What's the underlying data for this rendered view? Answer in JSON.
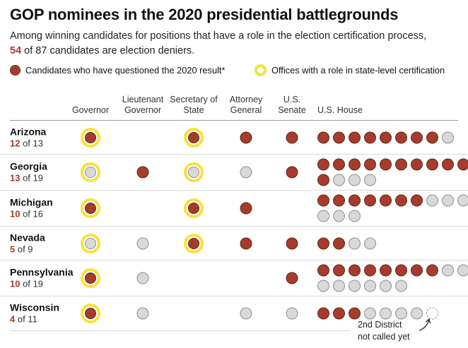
{
  "chart_data": {
    "type": "dot-matrix",
    "title": "GOP nominees in the 2020 presidential battlegrounds",
    "subtitle_line1": "Among winning candidates for positions that have a role in the election certification process,",
    "denier_count": "54",
    "subtitle_line2_rest": " of 87 candidates are election deniers.",
    "legend": {
      "denier_label": "Candidates who have questioned the 2020 result*",
      "certification_label": "Offices with a role in state-level certification"
    },
    "columns": [
      {
        "label": "Governor"
      },
      {
        "label": "Lieutenant Governor"
      },
      {
        "label": "Secretary of State"
      },
      {
        "label": "Attorney General"
      },
      {
        "label": "U.S. Senate"
      },
      {
        "label": "U.S. House"
      }
    ],
    "of_word": "of",
    "states": [
      {
        "name": "Arizona",
        "deniers": 12,
        "total": 13,
        "offices": {
          "governor": "red-ring",
          "lieutenant_governor": "none",
          "secretary_of_state": "red-ring",
          "attorney_general": "red",
          "us_senate": "red"
        },
        "house_rows": [
          [
            "red",
            "red",
            "red",
            "red",
            "red",
            "red",
            "red",
            "red",
            "gray"
          ]
        ]
      },
      {
        "name": "Georgia",
        "deniers": 13,
        "total": 19,
        "offices": {
          "governor": "gray-ring",
          "lieutenant_governor": "red",
          "secretary_of_state": "gray-ring",
          "attorney_general": "gray",
          "us_senate": "red"
        },
        "house_rows": [
          [
            "red",
            "red",
            "red",
            "red",
            "red",
            "red",
            "red",
            "red",
            "red",
            "red"
          ],
          [
            "red",
            "gray",
            "gray",
            "gray"
          ]
        ]
      },
      {
        "name": "Michigan",
        "deniers": 10,
        "total": 16,
        "offices": {
          "governor": "red-ring",
          "lieutenant_governor": "none",
          "secretary_of_state": "red-ring",
          "attorney_general": "red",
          "us_senate": "none"
        },
        "house_rows": [
          [
            "red",
            "red",
            "red",
            "red",
            "red",
            "red",
            "red",
            "gray",
            "gray",
            "gray"
          ],
          [
            "gray",
            "gray",
            "gray"
          ]
        ]
      },
      {
        "name": "Nevada",
        "deniers": 5,
        "total": 9,
        "offices": {
          "governor": "gray-ring",
          "lieutenant_governor": "gray",
          "secretary_of_state": "red-ring",
          "attorney_general": "red",
          "us_senate": "red"
        },
        "house_rows": [
          [
            "red",
            "red",
            "gray",
            "gray"
          ]
        ]
      },
      {
        "name": "Pennsylvania",
        "deniers": 10,
        "total": 19,
        "offices": {
          "governor": "red-ring",
          "lieutenant_governor": "gray",
          "secretary_of_state": "none",
          "attorney_general": "none",
          "us_senate": "red"
        },
        "house_rows": [
          [
            "red",
            "red",
            "red",
            "red",
            "red",
            "red",
            "red",
            "red",
            "gray",
            "gray"
          ],
          [
            "gray",
            "gray",
            "gray",
            "gray",
            "gray",
            "gray"
          ]
        ]
      },
      {
        "name": "Wisconsin",
        "deniers": 4,
        "total": 11,
        "offices": {
          "governor": "red-ring",
          "lieutenant_governor": "gray",
          "secretary_of_state": "none",
          "attorney_general": "gray",
          "us_senate": "gray"
        },
        "house_rows": [
          [
            "red",
            "red",
            "red",
            "gray",
            "gray",
            "gray",
            "gray",
            "dashed"
          ]
        ]
      }
    ],
    "annotation": {
      "line1": "2nd District",
      "line2": "not called yet"
    },
    "colors": {
      "denier_red": "#a63c2b",
      "non_denier_gray": "#d9d9d9",
      "certification_yellow": "#f7e23c"
    }
  }
}
